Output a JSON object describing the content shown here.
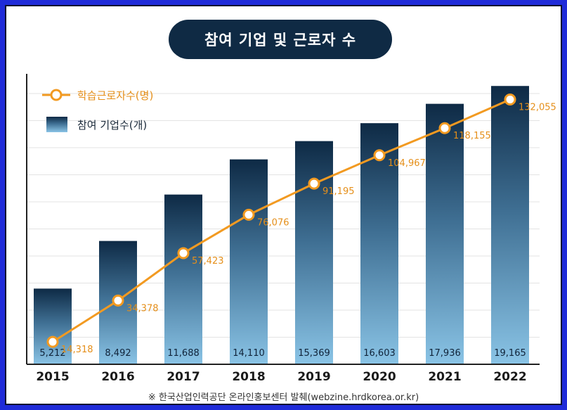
{
  "title": "참여 기업 및 근로자 수",
  "source_note": "※ 한국산업인력공단 온라인홍보센터 발췌(webzine.hrdkorea.or.kr)",
  "colors": {
    "frame": "#1f2bd9",
    "title_bg": "#0f2a44",
    "bar_top": "#0e2a45",
    "bar_bottom": "#8ac4e6",
    "line": "#f29a21"
  },
  "chart_data": {
    "type": "bar",
    "title": "참여 기업 및 근로자 수",
    "categories": [
      "2015",
      "2016",
      "2017",
      "2018",
      "2019",
      "2020",
      "2021",
      "2022"
    ],
    "series": [
      {
        "name": "참여 기업수(개)",
        "type": "bar",
        "values": [
          5212,
          8492,
          11688,
          14110,
          15369,
          16603,
          17936,
          19165
        ],
        "labels": [
          "5,212",
          "8,492",
          "11,688",
          "14,110",
          "15,369",
          "16,603",
          "17,936",
          "19,165"
        ]
      },
      {
        "name": "학습근로자수(명)",
        "type": "line",
        "values": [
          14318,
          34378,
          57423,
          76076,
          91195,
          104967,
          118155,
          132055
        ],
        "labels": [
          "14,318",
          "34,378",
          "57,423",
          "76,076",
          "91,195",
          "104,967",
          "118,155",
          "132,055"
        ]
      }
    ],
    "grid": true,
    "legend": "top-left"
  }
}
